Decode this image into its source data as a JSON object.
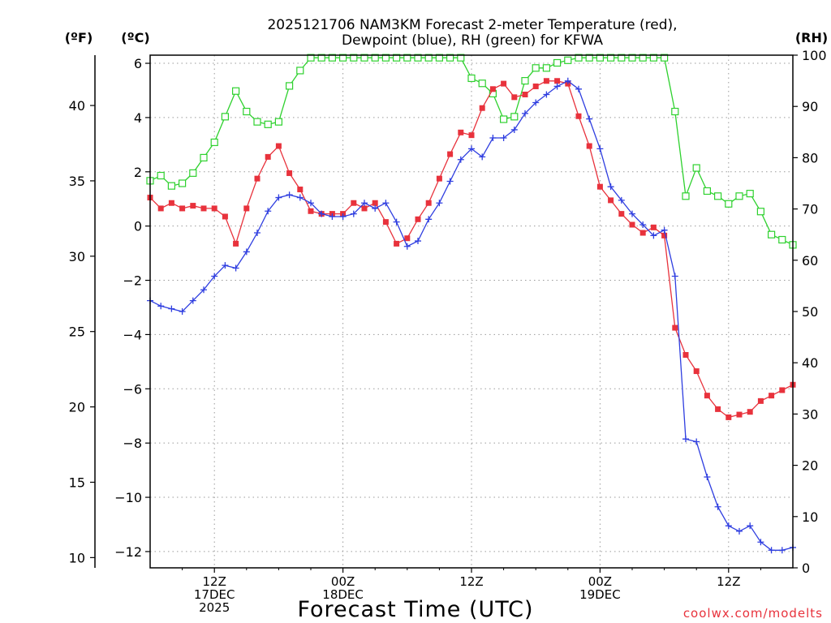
{
  "chart_data": {
    "type": "line",
    "title": [
      "2025121706 NAM3KM Forecast 2-meter Temperature (red),",
      "Dewpoint (blue), RH (green) for KFWA"
    ],
    "xlabel": "Forecast Time (UTC)",
    "watermark": "coolwx.com/modelts",
    "axis_units": {
      "fahrenheit": "(ºF)",
      "celsius": "(ºC)",
      "rh": "(RH)"
    },
    "x_range_hours": [
      0,
      60
    ],
    "x_ticks": [
      {
        "hour": 6,
        "lines": [
          "12Z",
          "17DEC",
          "2025"
        ]
      },
      {
        "hour": 18,
        "lines": [
          "00Z",
          "18DEC"
        ]
      },
      {
        "hour": 30,
        "lines": [
          "12Z"
        ]
      },
      {
        "hour": 42,
        "lines": [
          "00Z",
          "19DEC"
        ]
      },
      {
        "hour": 54,
        "lines": [
          "12Z"
        ]
      }
    ],
    "y_celsius": {
      "range": [
        -12.6,
        6.3
      ],
      "ticks": [
        6,
        4,
        2,
        0,
        -2,
        -4,
        -6,
        -8,
        -10,
        -12
      ],
      "labels": [
        "6",
        "4",
        "2",
        "0",
        "−2",
        "−4",
        "−6",
        "−8",
        "−10",
        "−12"
      ]
    },
    "y_fahrenheit": {
      "ticks": [
        40,
        35,
        30,
        25,
        20,
        15,
        10
      ],
      "labels": [
        "40",
        "35",
        "30",
        "25",
        "20",
        "15",
        "10"
      ]
    },
    "y_rh": {
      "range": [
        0,
        100
      ],
      "ticks": [
        100,
        90,
        80,
        70,
        60,
        50,
        40,
        30,
        20,
        10,
        0
      ],
      "labels": [
        "100",
        "90",
        "80",
        "70",
        "60",
        "50",
        "40",
        "30",
        "20",
        "10",
        "0"
      ]
    },
    "hours": [
      0,
      1,
      2,
      3,
      4,
      5,
      6,
      7,
      8,
      9,
      10,
      11,
      12,
      13,
      14,
      15,
      16,
      17,
      18,
      19,
      20,
      21,
      22,
      23,
      24,
      25,
      26,
      27,
      28,
      29,
      30,
      31,
      32,
      33,
      34,
      35,
      36,
      37,
      38,
      39,
      40,
      41,
      42,
      43,
      44,
      45,
      46,
      47,
      48,
      49,
      50,
      51,
      52,
      53,
      54,
      55,
      56,
      57,
      58,
      59,
      60
    ],
    "series": [
      {
        "name": "2-meter Temperature",
        "unit": "degC",
        "color": "#e8323c",
        "marker": "filled-square",
        "values": [
          1.05,
          0.65,
          0.85,
          0.65,
          0.75,
          0.65,
          0.65,
          0.35,
          -0.65,
          0.65,
          1.75,
          2.55,
          2.95,
          1.95,
          1.35,
          0.55,
          0.45,
          0.45,
          0.45,
          0.85,
          0.65,
          0.85,
          0.15,
          -0.65,
          -0.45,
          0.25,
          0.85,
          1.75,
          2.65,
          3.45,
          3.35,
          4.35,
          5.05,
          5.25,
          4.75,
          4.85,
          5.15,
          5.35,
          5.35,
          5.25,
          4.05,
          2.95,
          1.45,
          0.95,
          0.45,
          0.05,
          -0.25,
          -0.05,
          -0.35,
          -3.75,
          -4.75,
          -5.35,
          -6.25,
          -6.75,
          -7.05,
          -6.95,
          -6.85,
          -6.45,
          -6.25,
          -6.05,
          -5.85
        ]
      },
      {
        "name": "Dewpoint",
        "unit": "degC",
        "color": "#2f3ee0",
        "marker": "plus",
        "values": [
          -2.75,
          -2.95,
          -3.05,
          -3.15,
          -2.75,
          -2.35,
          -1.85,
          -1.45,
          -1.55,
          -0.95,
          -0.25,
          0.55,
          1.05,
          1.15,
          1.05,
          0.85,
          0.45,
          0.35,
          0.35,
          0.45,
          0.85,
          0.65,
          0.85,
          0.15,
          -0.75,
          -0.55,
          0.25,
          0.85,
          1.65,
          2.45,
          2.85,
          2.55,
          3.25,
          3.25,
          3.55,
          4.15,
          4.55,
          4.85,
          5.15,
          5.35,
          5.05,
          3.95,
          2.85,
          1.45,
          0.95,
          0.45,
          0.05,
          -0.35,
          -0.15,
          -1.85,
          -7.85,
          -7.95,
          -9.25,
          -10.35,
          -11.05,
          -11.25,
          -11.05,
          -11.65,
          -11.95,
          -11.95,
          -11.85
        ]
      },
      {
        "name": "Relative Humidity",
        "unit": "percent",
        "color": "#2ed12e",
        "marker": "open-square",
        "values": [
          75.5,
          76.5,
          74.5,
          75,
          77,
          80,
          83,
          88,
          93,
          89,
          87,
          86.5,
          87,
          94,
          97,
          99.5,
          99.5,
          99.5,
          99.5,
          99.5,
          99.5,
          99.5,
          99.5,
          99.5,
          99.5,
          99.5,
          99.5,
          99.5,
          99.5,
          99.5,
          95.5,
          94.5,
          92.5,
          87.5,
          88,
          95,
          97.5,
          97.5,
          98.5,
          99,
          99.5,
          99.5,
          99.5,
          99.5,
          99.5,
          99.5,
          99.5,
          99.5,
          99.5,
          89,
          72.5,
          78,
          73.5,
          72.5,
          71,
          72.5,
          73,
          69.5,
          65,
          64,
          63
        ]
      }
    ]
  }
}
